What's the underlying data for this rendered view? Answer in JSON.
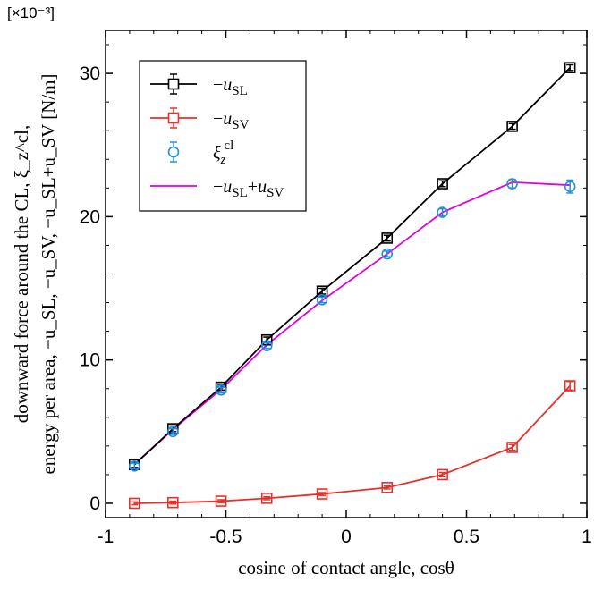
{
  "chart_data": {
    "type": "line",
    "xlabel": "cosine of contact angle, cosθ",
    "ylabel_line1": "downward force around the CL, ξ_z^cl,",
    "ylabel_line2": "energy per area, −u_SL, −u_SV, −u_SL+u_SV [N/m]",
    "y_multiplier": "[×10⁻³]",
    "xlim": [
      -1,
      1
    ],
    "ylim": [
      -1,
      33
    ],
    "xticks": [
      -1,
      -0.5,
      0,
      0.5,
      1
    ],
    "xtick_labels": [
      "-1",
      "-0.5",
      "0",
      "0.5",
      "1"
    ],
    "yticks": [
      0,
      10,
      20,
      30
    ],
    "ytick_labels": [
      "0",
      "10",
      "20",
      "30"
    ],
    "grid": false,
    "legend_position": "top-left",
    "x": [
      -0.88,
      -0.72,
      -0.52,
      -0.33,
      -0.1,
      0.17,
      0.4,
      0.69,
      0.93
    ],
    "series": [
      {
        "name": "−u_SL",
        "color": "#000000",
        "marker": "square",
        "line": true,
        "values": [
          2.7,
          5.2,
          8.1,
          11.4,
          14.8,
          18.5,
          22.3,
          26.3,
          30.4
        ],
        "errors": [
          0.2,
          0.2,
          0.2,
          0.2,
          0.2,
          0.2,
          0.2,
          0.2,
          0.2
        ]
      },
      {
        "name": "−u_SV",
        "color": "#e8302a",
        "marker": "square",
        "line": true,
        "values": [
          0.0,
          0.05,
          0.15,
          0.35,
          0.65,
          1.1,
          2.0,
          3.9,
          8.2
        ],
        "errors": [
          0.1,
          0.1,
          0.1,
          0.1,
          0.1,
          0.1,
          0.15,
          0.2,
          0.3
        ]
      },
      {
        "name": "ξ_z^cl",
        "color": "#1f8fe0",
        "marker": "circle",
        "line": false,
        "values": [
          2.6,
          5.0,
          7.9,
          11.0,
          14.2,
          17.4,
          20.3,
          22.3,
          22.1
        ],
        "errors": [
          0.2,
          0.2,
          0.2,
          0.2,
          0.2,
          0.2,
          0.25,
          0.3,
          0.45
        ]
      },
      {
        "name": "−u_SL+u_SV",
        "color": "#e000e0",
        "marker": "none",
        "line": true,
        "values": [
          2.7,
          5.15,
          7.95,
          11.05,
          14.15,
          17.4,
          20.3,
          22.4,
          22.2
        ]
      }
    ]
  }
}
